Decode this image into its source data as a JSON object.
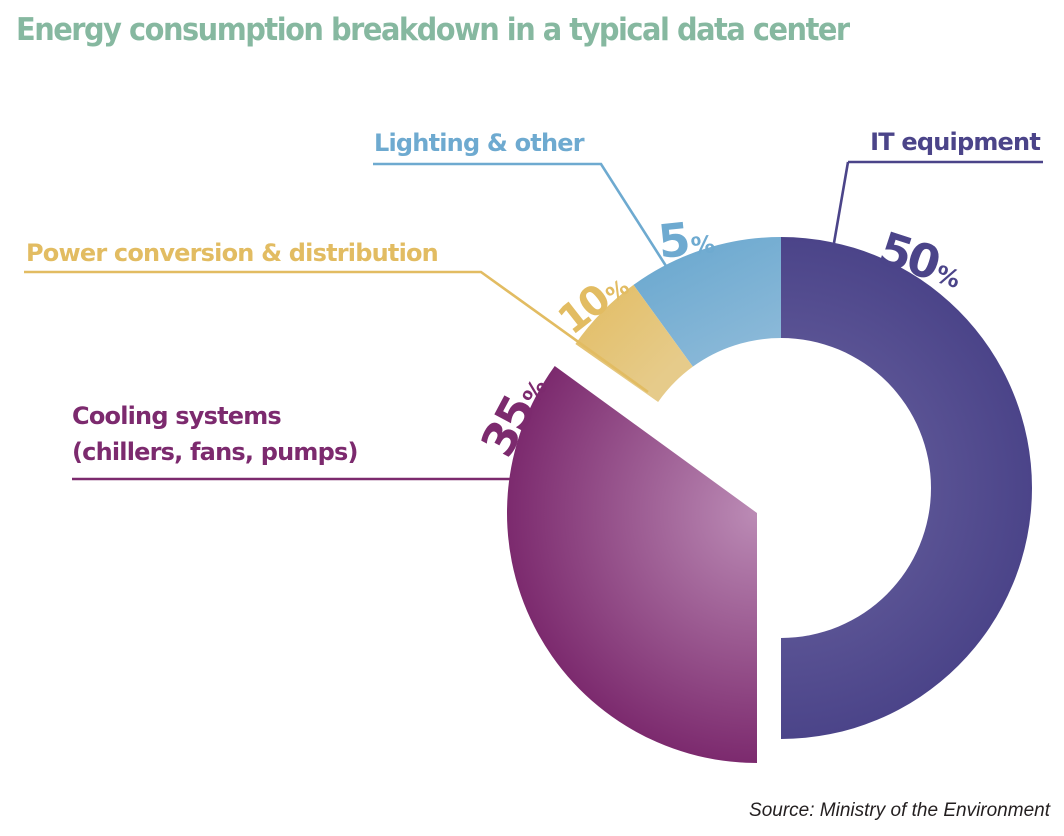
{
  "chart_data": {
    "type": "pie",
    "variant": "donut-with-exploded-slice",
    "title": "Energy consumption breakdown in a typical data center",
    "source": "Source: Ministry of the Environment",
    "unit": "%",
    "legend": "none (leader-line labels)",
    "slices": [
      {
        "key": "it",
        "label": "IT equipment",
        "value": 50,
        "value_label": "50",
        "color": "#4b4489",
        "color_light": "#6e67a3",
        "exploded": false,
        "hole": true
      },
      {
        "key": "lighting",
        "label": "Lighting & other",
        "value": 5,
        "value_label": "5",
        "color": "#6eaad0",
        "color_light": "#8dbad9",
        "exploded": false,
        "hole": true
      },
      {
        "key": "power",
        "label": "Power conversion & distribution",
        "value": 10,
        "value_label": "10",
        "color": "#e2bc62",
        "color_light": "#e6cb8a",
        "exploded": false,
        "hole": true
      },
      {
        "key": "cooling",
        "label": "Cooling systems\n(chillers, fans, pumps)",
        "label_lines": [
          "Cooling systems",
          "(chillers, fans, pumps)"
        ],
        "value": 35,
        "value_label": "35",
        "color": "#7c2a6e",
        "color_light": "#bb8bb5",
        "exploded": true,
        "hole": false
      }
    ]
  }
}
